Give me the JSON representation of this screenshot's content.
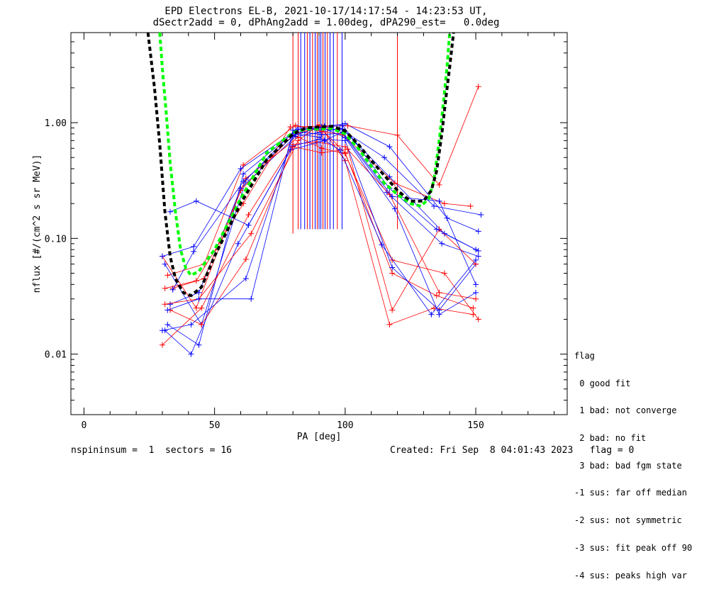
{
  "title": {
    "line1": "EPD Electrons EL-B, 2021-10-17/14:17:54 - 14:23:53 UT,",
    "line2": "dSectr2add = 0, dPhAng2add = 1.00deg, dPA290_est=   0.0deg"
  },
  "footer": {
    "left": "nspininsum =  1  sectors = 16",
    "right": "Created: Fri Sep  8 04:01:43 2023   flag = 0"
  },
  "legend": {
    "title": "flag",
    "items": [
      " 0 good fit",
      " 1 bad: not converge",
      " 2 bad: no fit",
      " 3 bad: bad fgm state",
      "-1 sus: far off median",
      "-2 sus: not symmetric",
      "-3 sus: fit peak off 90",
      "-4 sus: peaks high var"
    ]
  },
  "chart_data": {
    "type": "line",
    "xlabel": "PA [deg]",
    "ylabel": "nflux [#/(cm^2 s sr MeV)]",
    "xlim": [
      -5,
      185
    ],
    "ylim": [
      0.003,
      6.0
    ],
    "yscale": "log",
    "xticks": [
      0,
      50,
      100,
      150
    ],
    "xtick_labels": [
      "0",
      "50",
      "100",
      "150"
    ],
    "yticks": [
      0.01,
      0.1,
      1.0
    ],
    "ytick_labels": [
      "0.01",
      "0.10",
      "1.00"
    ],
    "colors": {
      "series_a": "#0000ff",
      "series_b": "#ff0000",
      "fit_black": "#000000",
      "fit_green": "#00ff00"
    },
    "curves": [
      {
        "color": "#0000ff",
        "points": [
          [
            31,
            0.06
          ],
          [
            45,
            0.018
          ],
          [
            62,
            0.32
          ],
          [
            82,
            0.92
          ],
          [
            90,
            0.87
          ],
          [
            99,
            0.88
          ],
          [
            117,
            0.34
          ],
          [
            138,
            0.11
          ],
          [
            150,
            0.08
          ]
        ]
      },
      {
        "color": "#ff0000",
        "points": [
          [
            30,
            0.07
          ],
          [
            43,
            0.025
          ],
          [
            60,
            0.26
          ],
          [
            80,
            0.78
          ],
          [
            90,
            0.92
          ],
          [
            100,
            0.55
          ],
          [
            118,
            0.05
          ],
          [
            135,
            0.032
          ],
          [
            149,
            0.025
          ]
        ]
      },
      {
        "color": "#0000ff",
        "points": [
          [
            32,
            0.018
          ],
          [
            44,
            0.012
          ],
          [
            61,
            0.36
          ],
          [
            81,
            0.84
          ],
          [
            91,
            0.79
          ],
          [
            99,
            0.81
          ],
          [
            116,
            0.25
          ],
          [
            137,
            0.09
          ],
          [
            151,
            0.07
          ]
        ]
      },
      {
        "color": "#ff0000",
        "points": [
          [
            30,
            0.012
          ],
          [
            45,
            0.025
          ],
          [
            63,
            0.16
          ],
          [
            80,
            0.65
          ],
          [
            89,
            0.68
          ],
          [
            100,
            0.62
          ],
          [
            117,
            0.24
          ],
          [
            136,
            0.034
          ],
          [
            150,
            0.03
          ]
        ]
      },
      {
        "color": "#0000ff",
        "points": [
          [
            33,
            0.027
          ],
          [
            44,
            0.034
          ],
          [
            60,
            0.27
          ],
          [
            81,
            0.76
          ],
          [
            90,
            0.82
          ],
          [
            98,
            0.89
          ],
          [
            115,
            0.5
          ],
          [
            134,
            0.19
          ],
          [
            152,
            0.16
          ]
        ]
      },
      {
        "color": "#ff0000",
        "points": [
          [
            34,
            0.037
          ],
          [
            46,
            0.045
          ],
          [
            62,
            0.33
          ],
          [
            82,
            0.75
          ],
          [
            91,
            0.6
          ],
          [
            100,
            0.54
          ],
          [
            118,
            0.065
          ],
          [
            138,
            0.05
          ],
          [
            151,
            0.02
          ]
        ]
      },
      {
        "color": "#0000ff",
        "points": [
          [
            31,
            0.016
          ],
          [
            41,
            0.01
          ],
          [
            59,
            0.09
          ],
          [
            80,
            0.63
          ],
          [
            90,
            0.72
          ],
          [
            100,
            0.7
          ],
          [
            118,
            0.056
          ],
          [
            136,
            0.024
          ],
          [
            150,
            0.06
          ]
        ]
      },
      {
        "color": "#ff0000",
        "points": [
          [
            32,
            0.048
          ],
          [
            46,
            0.06
          ],
          [
            61,
            0.43
          ],
          [
            81,
            0.95
          ],
          [
            91,
            0.84
          ],
          [
            99,
            0.79
          ],
          [
            119,
            0.3
          ],
          [
            138,
            0.2
          ],
          [
            148,
            0.19
          ]
        ]
      },
      {
        "color": "#0000ff",
        "points": [
          [
            30,
            0.07
          ],
          [
            42,
            0.085
          ],
          [
            60,
            0.4
          ],
          [
            82,
            0.88
          ],
          [
            92,
            0.93
          ],
          [
            100,
            0.98
          ],
          [
            117,
            0.62
          ],
          [
            139,
            0.15
          ],
          [
            151,
            0.115
          ]
        ]
      },
      {
        "color": "#ff0000",
        "points": [
          [
            31,
            0.027
          ],
          [
            44,
            0.03
          ],
          [
            64,
            0.11
          ],
          [
            82,
            0.7
          ],
          [
            90,
            0.96
          ],
          [
            100,
            0.47
          ],
          [
            117,
            0.018
          ],
          [
            134,
            0.025
          ],
          [
            149,
            0.022
          ]
        ]
      },
      {
        "color": "#0000ff",
        "points": [
          [
            33,
            0.17
          ],
          [
            43,
            0.21
          ],
          [
            63,
            0.13
          ],
          [
            79,
            0.58
          ],
          [
            92,
            0.7
          ],
          [
            99,
            0.83
          ],
          [
            118,
            0.23
          ],
          [
            136,
            0.21
          ],
          [
            150,
            0.04
          ]
        ]
      },
      {
        "color": "#ff0000",
        "points": [
          [
            33,
            0.024
          ],
          [
            45,
            0.018
          ],
          [
            62,
            0.066
          ],
          [
            80,
            0.62
          ],
          [
            91,
            0.55
          ],
          [
            101,
            0.59
          ],
          [
            118,
            0.024
          ],
          [
            136,
            0.12
          ],
          [
            150,
            0.06
          ]
        ]
      },
      {
        "color": "#0000ff",
        "points": [
          [
            30,
            0.016
          ],
          [
            41,
            0.018
          ],
          [
            62,
            0.045
          ],
          [
            80,
            0.77
          ],
          [
            91,
            0.92
          ],
          [
            100,
            0.74
          ],
          [
            119,
            0.18
          ],
          [
            136,
            0.022
          ],
          [
            150,
            0.034
          ]
        ]
      },
      {
        "color": "#ff0000",
        "points": [
          [
            31,
            0.037
          ],
          [
            43,
            0.043
          ],
          [
            61,
            0.2
          ],
          [
            79,
            0.92
          ],
          [
            90,
            0.93
          ],
          [
            101,
            0.94
          ],
          [
            120,
            0.78
          ],
          [
            136,
            0.29
          ],
          [
            151,
            2.05
          ]
        ]
      },
      {
        "color": "#0000ff",
        "points": [
          [
            34,
            0.036
          ],
          [
            42,
            0.077
          ],
          [
            61,
            0.31
          ],
          [
            81,
            0.8
          ],
          [
            90,
            0.75
          ],
          [
            98,
            0.58
          ],
          [
            114,
            0.088
          ],
          [
            133,
            0.022
          ],
          [
            150,
            0.065
          ]
        ]
      },
      {
        "color": "#0000ff",
        "points": [
          [
            32,
            0.024
          ],
          [
            44,
            0.03
          ],
          [
            64,
            0.03
          ],
          [
            80,
            0.86
          ],
          [
            89,
            0.89
          ],
          [
            99,
            0.95
          ],
          [
            117,
            0.27
          ],
          [
            135,
            0.12
          ],
          [
            151,
            0.078
          ]
        ]
      }
    ],
    "vlines": [
      {
        "color": "#ff0000",
        "x": 80,
        "y1": 0.11,
        "y2": 6.0
      },
      {
        "color": "#ff0000",
        "x": 82,
        "y1": 0.12,
        "y2": 6.0
      },
      {
        "color": "#0000ff",
        "x": 83,
        "y1": 0.12,
        "y2": 6.0
      },
      {
        "color": "#0000ff",
        "x": 84.5,
        "y1": 0.12,
        "y2": 6.0
      },
      {
        "color": "#ff0000",
        "x": 85.5,
        "y1": 0.12,
        "y2": 6.0
      },
      {
        "color": "#0000ff",
        "x": 86.5,
        "y1": 0.12,
        "y2": 6.0
      },
      {
        "color": "#ff0000",
        "x": 87.5,
        "y1": 0.12,
        "y2": 6.0
      },
      {
        "color": "#0000ff",
        "x": 88.5,
        "y1": 0.12,
        "y2": 6.0
      },
      {
        "color": "#ff0000",
        "x": 89.3,
        "y1": 0.12,
        "y2": 6.0
      },
      {
        "color": "#0000ff",
        "x": 90,
        "y1": 0.12,
        "y2": 6.0
      },
      {
        "color": "#0000ff",
        "x": 90.7,
        "y1": 0.12,
        "y2": 6.0
      },
      {
        "color": "#ff0000",
        "x": 91.5,
        "y1": 0.12,
        "y2": 6.0
      },
      {
        "color": "#0000ff",
        "x": 92.3,
        "y1": 0.12,
        "y2": 6.0
      },
      {
        "color": "#ff0000",
        "x": 93.2,
        "y1": 0.12,
        "y2": 6.0
      },
      {
        "color": "#0000ff",
        "x": 94.2,
        "y1": 0.12,
        "y2": 6.0
      },
      {
        "color": "#0000ff",
        "x": 95.5,
        "y1": 0.12,
        "y2": 6.0
      },
      {
        "color": "#ff0000",
        "x": 97,
        "y1": 0.12,
        "y2": 6.0
      },
      {
        "color": "#0000ff",
        "x": 98.8,
        "y1": 0.12,
        "y2": 6.0
      },
      {
        "color": "#ff0000",
        "x": 120,
        "y1": 0.12,
        "y2": 6.0
      }
    ],
    "fit_black": [
      [
        24.5,
        6.0
      ],
      [
        27,
        2.0
      ],
      [
        29,
        0.65
      ],
      [
        31,
        0.17
      ],
      [
        33,
        0.07
      ],
      [
        35,
        0.045
      ],
      [
        38,
        0.034
      ],
      [
        41,
        0.032
      ],
      [
        45,
        0.038
      ],
      [
        50,
        0.07
      ],
      [
        60,
        0.2
      ],
      [
        70,
        0.48
      ],
      [
        80,
        0.8
      ],
      [
        85,
        0.9
      ],
      [
        90,
        0.92
      ],
      [
        95,
        0.93
      ],
      [
        100,
        0.85
      ],
      [
        105,
        0.65
      ],
      [
        110,
        0.47
      ],
      [
        115,
        0.35
      ],
      [
        120,
        0.26
      ],
      [
        125,
        0.21
      ],
      [
        130,
        0.21
      ],
      [
        133,
        0.26
      ],
      [
        135,
        0.38
      ],
      [
        137,
        0.8
      ],
      [
        138.5,
        1.6
      ],
      [
        140,
        3.0
      ],
      [
        141.5,
        6.0
      ]
    ],
    "fit_green": [
      [
        29,
        6.0
      ],
      [
        30,
        3.0
      ],
      [
        31.5,
        1.2
      ],
      [
        33,
        0.45
      ],
      [
        35,
        0.17
      ],
      [
        37,
        0.08
      ],
      [
        39,
        0.055
      ],
      [
        41,
        0.048
      ],
      [
        44,
        0.052
      ],
      [
        50,
        0.08
      ],
      [
        60,
        0.22
      ],
      [
        70,
        0.55
      ],
      [
        80,
        0.82
      ],
      [
        85,
        0.88
      ],
      [
        90,
        0.88
      ],
      [
        95,
        0.89
      ],
      [
        100,
        0.8
      ],
      [
        105,
        0.6
      ],
      [
        110,
        0.42
      ],
      [
        115,
        0.3
      ],
      [
        120,
        0.24
      ],
      [
        125,
        0.2
      ],
      [
        129,
        0.19
      ],
      [
        132,
        0.22
      ],
      [
        134,
        0.32
      ],
      [
        136,
        0.7
      ],
      [
        137.5,
        1.4
      ],
      [
        139,
        3.0
      ],
      [
        140,
        6.0
      ]
    ]
  }
}
